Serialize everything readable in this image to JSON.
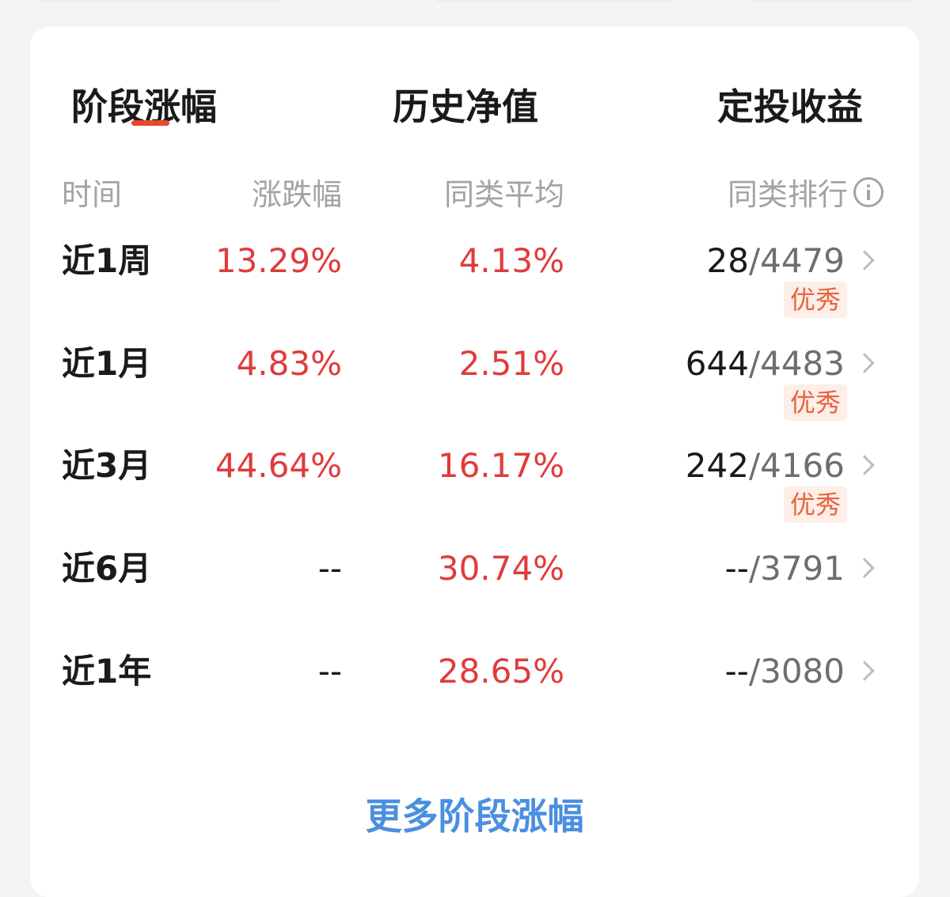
{
  "tabs": [
    {
      "label": "阶段涨幅",
      "active": true
    },
    {
      "label": "历史净值",
      "active": false
    },
    {
      "label": "定投收益",
      "active": false
    }
  ],
  "columns": {
    "period": "时间",
    "change": "涨跌幅",
    "category_avg": "同类平均",
    "category_rank": "同类排行"
  },
  "rows": [
    {
      "period": "近1周",
      "change": "13.29%",
      "category_avg": "4.13%",
      "rank": "28",
      "total": "/4479",
      "badge": "优秀"
    },
    {
      "period": "近1月",
      "change": "4.83%",
      "category_avg": "2.51%",
      "rank": "644",
      "total": "/4483",
      "badge": "优秀"
    },
    {
      "period": "近3月",
      "change": "44.64%",
      "category_avg": "16.17%",
      "rank": "242",
      "total": "/4166",
      "badge": "优秀"
    },
    {
      "period": "近6月",
      "change": "--",
      "category_avg": "30.74%",
      "rank": "--",
      "total": "/3791"
    },
    {
      "period": "近1年",
      "change": "--",
      "category_avg": "28.65%",
      "rank": "--",
      "total": "/3080"
    }
  ],
  "more_link": "更多阶段涨幅",
  "icons": {
    "info": "info-icon",
    "chevron": "chevron-right-icon"
  },
  "colors": {
    "accent": "#e8492d",
    "positive": "#e03b3b",
    "neutral": "#1a1a1a",
    "muted": "#a3a3a3",
    "link": "#4a8fe0",
    "badge_bg": "#fdeee8",
    "badge_text": "#e8643f"
  }
}
